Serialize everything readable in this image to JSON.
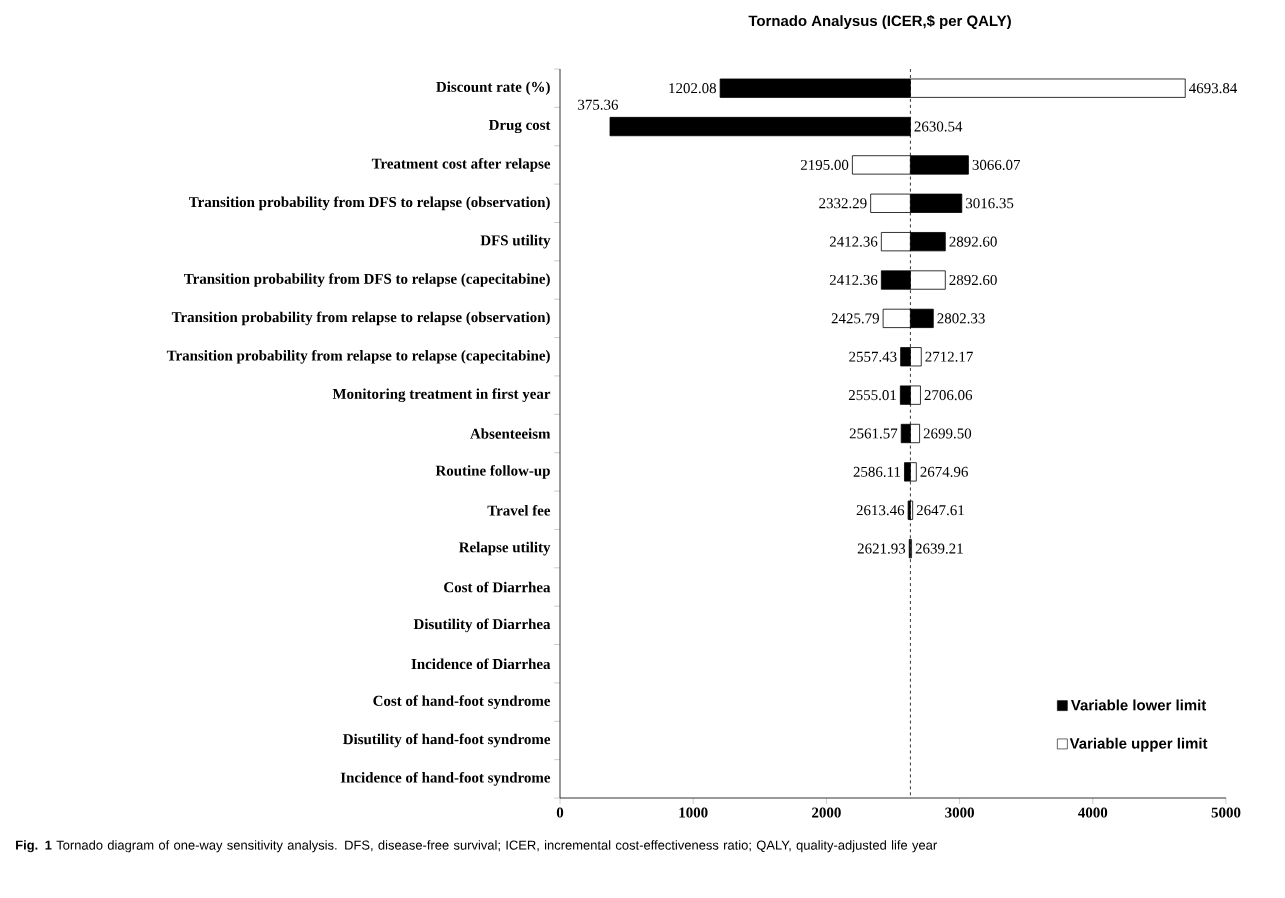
{
  "chart_data": {
    "type": "bar",
    "orientation": "horizontal",
    "title": "Tornado Analysus (ICER,$ per QALY)",
    "categories": [
      "Discount rate (%)",
      "Drug cost",
      "Treatment cost after relapse",
      "Transition probability from DFS to relapse (observation)",
      "DFS utility",
      "Transition probability from DFS to relapse (capecitabine)",
      "Transition probability from relapse to relapse (observation)",
      "Transition probability from relapse to relapse (capecitabine)",
      "Monitoring treatment in first year",
      "Absenteeism",
      "Routine follow-up",
      "Travel fee",
      "Relapse utility",
      "Cost of Diarrhea",
      "Disutility of Diarrhea",
      "Incidence of Diarrhea",
      "Cost of hand-foot syndrome",
      "Disutility of hand-foot syndrome",
      "Incidence of hand-foot syndrome"
    ],
    "series": [
      {
        "name": "Variable lower limit",
        "color": "#000000",
        "base": [
          2630.54,
          2630.54,
          2630.54,
          2630.54,
          2630.54,
          2630.54,
          2630.54,
          2630.54,
          2630.54,
          2630.54,
          2630.54,
          2630.54,
          2630.54,
          null,
          null,
          null,
          null,
          null,
          null
        ],
        "values": [
          -1428.46,
          -2255.18,
          435.53,
          385.81,
          262.06,
          -218.18,
          171.79,
          -73.11,
          -75.53,
          -68.97,
          -44.43,
          -17.08,
          -8.61,
          null,
          null,
          null,
          null,
          null,
          null
        ],
        "value_labels": [
          "1202.08",
          "375.36",
          "3066.07",
          "3016.35",
          "2892.60",
          "2412.36",
          "2802.33",
          "2557.43",
          "2555.01",
          "2561.57",
          "2586.11",
          "2613.46",
          "2621.93",
          null,
          null,
          null,
          null,
          null,
          null
        ]
      },
      {
        "name": "Variable upper limit",
        "color": "#ffffff",
        "base": [
          2630.54,
          null,
          2630.54,
          2630.54,
          2630.54,
          2630.54,
          2630.54,
          2630.54,
          2630.54,
          2630.54,
          2630.54,
          2630.54,
          2630.54,
          null,
          null,
          null,
          null,
          null,
          null
        ],
        "values": [
          2063.3,
          null,
          -435.54,
          -298.25,
          -218.18,
          262.06,
          -204.75,
          81.63,
          75.52,
          68.96,
          44.42,
          17.07,
          8.67,
          null,
          null,
          null,
          null,
          null,
          null
        ],
        "value_labels": [
          "4693.84",
          null,
          "2195.00",
          "2332.29",
          "2412.36",
          "2892.60",
          "2425.79",
          "2712.17",
          "2706.06",
          "2699.50",
          "2674.96",
          "2647.61",
          "2639.21",
          null,
          null,
          null,
          null,
          null,
          null
        ]
      }
    ],
    "xlim": [
      0,
      5000
    ],
    "xticks": [
      0,
      1000,
      2000,
      3000,
      4000,
      5000
    ],
    "ref_lines": [
      {
        "axis": "x",
        "value": 2630.54,
        "line_style": "dashed"
      }
    ],
    "legend": "bottom right",
    "grid": false,
    "annotations": [
      "**Fig. 1** Tornado diagram of one-way sensitivity analysis. DFS, disease-free survival; ICER, incremental cost-effectiveness ratio; QALY, quality-adjusted life year",
      {
        "text": "2630.54",
        "x": 2630.54,
        "y": "Drug cost"
      }
    ]
  }
}
